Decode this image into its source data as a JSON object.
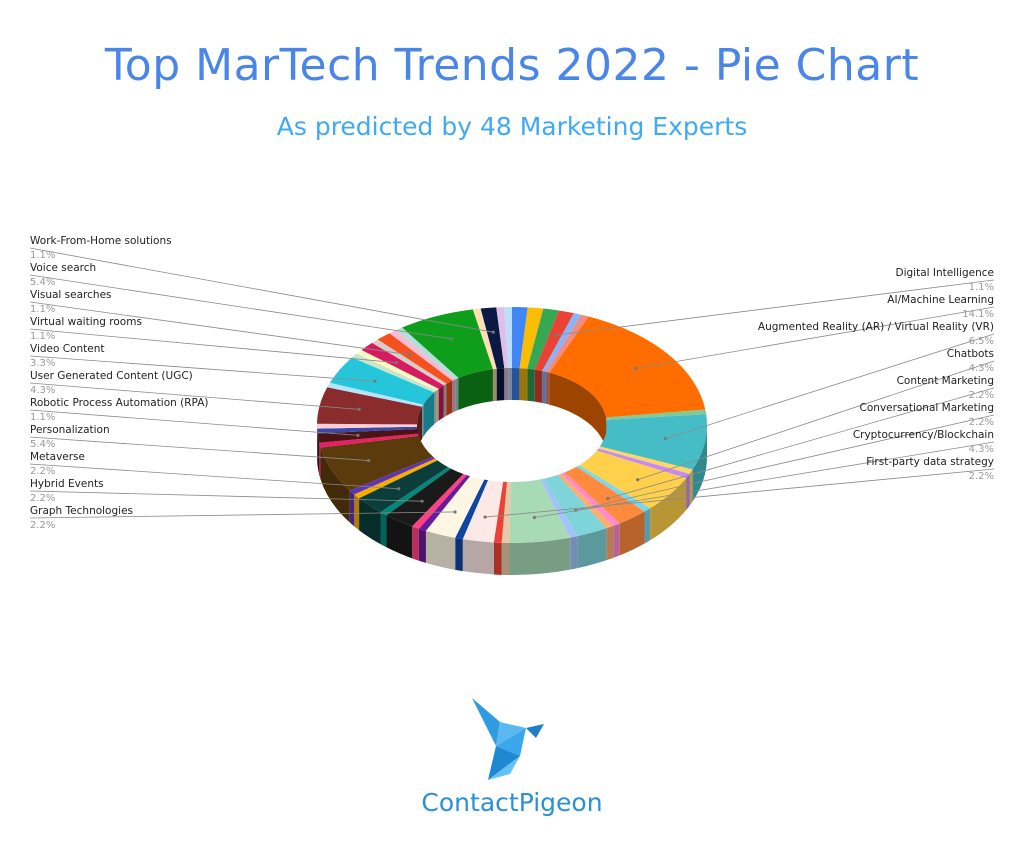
{
  "header": {
    "title": "Top MarTech Trends 2022 - Pie Chart",
    "subtitle": "As predicted by 48 Marketing Experts"
  },
  "brand": {
    "name": "ContactPigeon",
    "logo_icon": "bird-icon"
  },
  "chart_data": {
    "type": "pie",
    "style": "3d-donut",
    "title": "Top MarTech Trends 2022 - Pie Chart",
    "subtitle": "As predicted by 48 Marketing Experts",
    "slices": [
      {
        "label": "Digital Intelligence",
        "value": 1.1,
        "pct_label": "1.1%",
        "side": "right",
        "color": "#ea4335"
      },
      {
        "label": "AI/Machine Learning",
        "value": 14.1,
        "pct_label": "14.1%",
        "side": "right",
        "color": "#ff6d01"
      },
      {
        "label": "Augmented Reality (AR) / Virtual Reality (VR)",
        "value": 6.5,
        "pct_label": "6.5%",
        "side": "right",
        "color": "#46bdc6"
      },
      {
        "label": "Chatbots",
        "value": 4.3,
        "pct_label": "4.3%",
        "side": "right",
        "color": "#ffd04b"
      },
      {
        "label": "Content Marketing",
        "value": 2.2,
        "pct_label": "2.2%",
        "side": "right",
        "color": "#ff8a3d"
      },
      {
        "label": "Conversational Marketing",
        "value": 2.2,
        "pct_label": "2.2%",
        "side": "right",
        "color": "#7fd4d9"
      },
      {
        "label": "Cryptocurrency/Blockchain",
        "value": 4.3,
        "pct_label": "4.3%",
        "side": "right",
        "color": "#a8dab5"
      },
      {
        "label": "First-party data strategy",
        "value": 2.2,
        "pct_label": "2.2%",
        "side": "right",
        "color": "#fce8e6"
      },
      {
        "label": "Graph Technologies",
        "value": 2.2,
        "pct_label": "2.2%",
        "side": "left",
        "color": "#fdf6e3"
      },
      {
        "label": "Hybrid Events",
        "value": 2.2,
        "pct_label": "2.2%",
        "side": "left",
        "color": "#1a1a1a"
      },
      {
        "label": "Metaverse",
        "value": 2.2,
        "pct_label": "2.2%",
        "side": "left",
        "color": "#0b3d3a"
      },
      {
        "label": "Personalization",
        "value": 5.4,
        "pct_label": "5.4%",
        "side": "left",
        "color": "#5b3a0c"
      },
      {
        "label": "Robotic Process Automation (RPA)",
        "value": 1.1,
        "pct_label": "1.1%",
        "side": "left",
        "color": "#4a1414"
      },
      {
        "label": "User Generated Content (UGC)",
        "value": 4.3,
        "pct_label": "4.3%",
        "side": "left",
        "color": "#8b2c2c"
      },
      {
        "label": "Video Content",
        "value": 3.3,
        "pct_label": "3.3%",
        "side": "left",
        "color": "#26c6da"
      },
      {
        "label": "Virtual waiting rooms",
        "value": 1.1,
        "pct_label": "1.1%",
        "side": "left",
        "color": "#d81b60"
      },
      {
        "label": "Visual searches",
        "value": 1.1,
        "pct_label": "1.1%",
        "side": "left",
        "color": "#f4511e"
      },
      {
        "label": "Voice search",
        "value": 5.4,
        "pct_label": "5.4%",
        "side": "left",
        "color": "#0f9d1c"
      },
      {
        "label": "Work-From-Home solutions",
        "value": 1.1,
        "pct_label": "1.1%",
        "side": "left",
        "color": "#0b1a44"
      }
    ],
    "unlabeled_slice_colors": [
      "#4285f4",
      "#fbbc04",
      "#34a853",
      "#8ab4f8",
      "#f28b82",
      "#81c995",
      "#fdd663",
      "#c58af9",
      "#78d9ec",
      "#ff8bcb",
      "#fcad70",
      "#a1c2fa",
      "#e6c9a8",
      "#ea4335",
      "#0d47a1",
      "#6a1b9a",
      "#ff4081",
      "#00897b",
      "#f9ab00",
      "#5e35b1",
      "#e91e63",
      "#3949ab",
      "#ffcdd2",
      "#b3e5fc",
      "#c8e6c9",
      "#fff9c4",
      "#d7ccc8",
      "#f8bbd0",
      "#b2dfdb",
      "#ffe0b2",
      "#e1bee7",
      "#bbdefb",
      "#dcedc8",
      "#ffecb3",
      "#cfd8dc",
      "#f0f4c3"
    ]
  }
}
